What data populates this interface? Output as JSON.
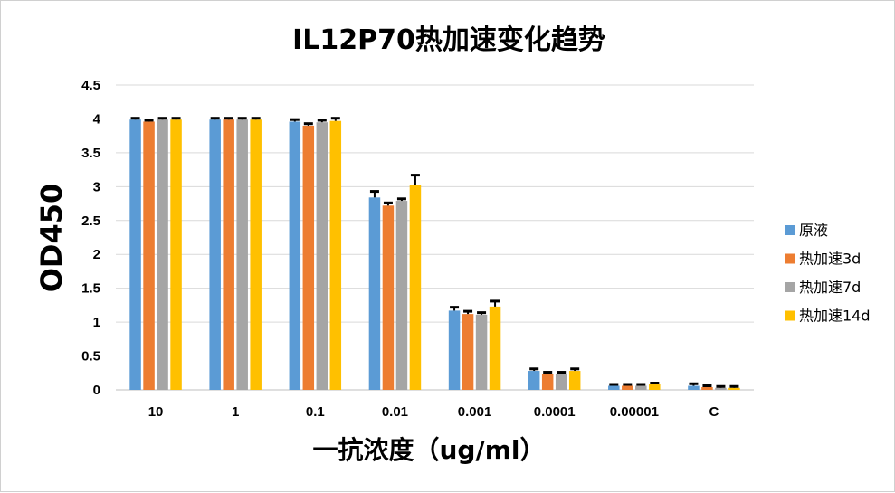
{
  "chart_data": {
    "type": "bar",
    "title": "IL12P70热加速变化趋势",
    "xlabel": "一抗浓度（ug/ml）",
    "ylabel": "OD450",
    "categories": [
      "10",
      "1",
      "0.1",
      "0.01",
      "0.001",
      "0.0001",
      "0.00001",
      "C"
    ],
    "ylim": [
      0,
      4.5
    ],
    "yticks": [
      0,
      0.5,
      1,
      1.5,
      2,
      2.5,
      3,
      3.5,
      4,
      4.5
    ],
    "ytick_labels": [
      "0",
      "0.5",
      "1",
      "1.5",
      "2",
      "2.5",
      "3",
      "3.5",
      "4",
      "4.5"
    ],
    "grid": true,
    "legend_position": "right",
    "series": [
      {
        "name": "原液",
        "color": "#5B9BD5",
        "values": [
          3.99,
          3.99,
          3.96,
          2.84,
          1.17,
          0.28,
          0.06,
          0.06
        ],
        "errors": [
          0.02,
          0.02,
          0.03,
          0.09,
          0.05,
          0.03,
          0.02,
          0.03
        ]
      },
      {
        "name": "热加速3d",
        "color": "#ED7D31",
        "values": [
          3.96,
          3.99,
          3.9,
          2.72,
          1.12,
          0.24,
          0.06,
          0.04
        ],
        "errors": [
          0.02,
          0.02,
          0.03,
          0.04,
          0.04,
          0.02,
          0.02,
          0.02
        ]
      },
      {
        "name": "热加速7d",
        "color": "#A5A5A5",
        "values": [
          3.99,
          3.99,
          3.95,
          2.79,
          1.11,
          0.24,
          0.06,
          0.03
        ],
        "errors": [
          0.02,
          0.02,
          0.03,
          0.03,
          0.03,
          0.02,
          0.02,
          0.02
        ]
      },
      {
        "name": "热加速14d",
        "color": "#FFC000",
        "values": [
          3.99,
          3.99,
          3.97,
          3.03,
          1.23,
          0.28,
          0.08,
          0.03
        ],
        "errors": [
          0.02,
          0.02,
          0.04,
          0.14,
          0.08,
          0.03,
          0.02,
          0.02
        ]
      }
    ]
  }
}
